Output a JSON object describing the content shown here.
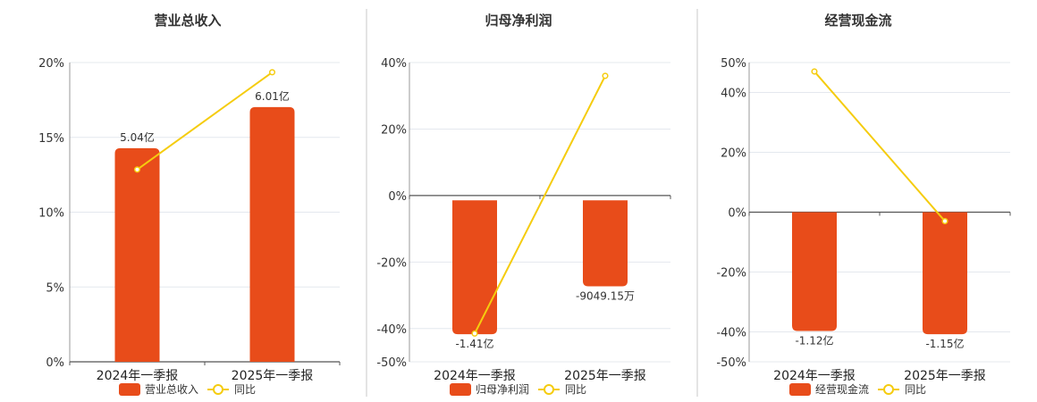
{
  "chart_data": [
    {
      "type": "bar",
      "title": "营业总收入",
      "categories": [
        "2024年一季报",
        "2025年一季报"
      ],
      "bars": {
        "name": "营业总收入",
        "values": [
          5.04,
          6.01
        ],
        "labels": [
          "5.04亿",
          "6.01亿"
        ],
        "ylim": [
          0,
          7.06
        ]
      },
      "line": {
        "name": "同比",
        "values": [
          12.85,
          19.35
        ]
      },
      "yticks": [
        "0%",
        "5%",
        "10%",
        "15%",
        "20%"
      ],
      "ytick_values": [
        0,
        5,
        10,
        15,
        20
      ],
      "ylim": [
        0,
        20
      ],
      "grid": true,
      "legend": "bottom-center"
    },
    {
      "type": "bar",
      "title": "归母净利润",
      "categories": [
        "2024年一季报",
        "2025年一季报"
      ],
      "bars": {
        "name": "归母净利润",
        "values": [
          -1.41,
          -0.904915
        ],
        "labels": [
          "-1.41亿",
          "-9049.15万"
        ],
        "ylim": [
          -1.7,
          1.45
        ]
      },
      "line": {
        "name": "同比",
        "values": [
          -41.5,
          36.0
        ]
      },
      "yticks": [
        "-50%",
        "-40%",
        "-20%",
        "0%",
        "20%",
        "40%"
      ],
      "ytick_values": [
        -50,
        -40,
        -20,
        0,
        20,
        40
      ],
      "ylim": [
        -50,
        40
      ],
      "grid": true,
      "legend": "bottom-center"
    },
    {
      "type": "bar",
      "title": "经营现金流",
      "categories": [
        "2024年一季报",
        "2025年一季报"
      ],
      "bars": {
        "name": "经营现金流",
        "values": [
          -1.12,
          -1.15
        ],
        "labels": [
          "-1.12亿",
          "-1.15亿"
        ],
        "ylim": [
          -1.41,
          1.41
        ]
      },
      "line": {
        "name": "同比",
        "values": [
          47.0,
          -3.0
        ]
      },
      "yticks": [
        "-50%",
        "-40%",
        "-20%",
        "0%",
        "20%",
        "40%",
        "50%"
      ],
      "ytick_values": [
        -50,
        -40,
        -20,
        0,
        20,
        40,
        50
      ],
      "ylim": [
        -50,
        50
      ],
      "grid": true,
      "legend": "bottom-center"
    }
  ],
  "colors": {
    "bar": "#e84c1a",
    "line": "#f5cc0f",
    "grid": "#e4e8ee",
    "axis": "#555555"
  }
}
